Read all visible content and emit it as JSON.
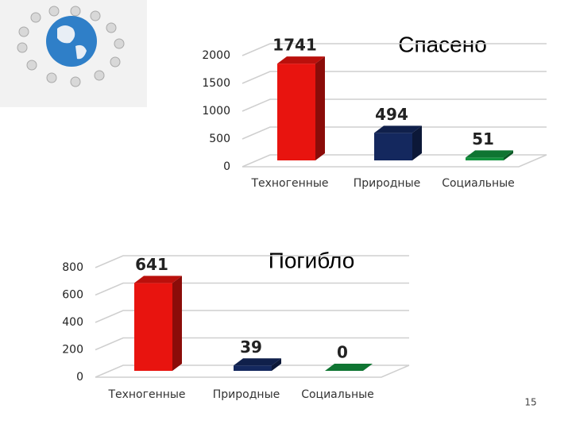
{
  "chart_data": [
    {
      "type": "bar",
      "title": "Спасено",
      "categories": [
        "Техногенные",
        "Природные",
        "Социальные"
      ],
      "values": [
        1741,
        494,
        51
      ],
      "colors": [
        "#e8140f",
        "#14285e",
        "#13923e"
      ],
      "ylim": [
        0,
        2000
      ],
      "yticks": [
        0,
        500,
        1000,
        1500,
        2000
      ],
      "grid": true
    },
    {
      "type": "bar",
      "title": "Погибло",
      "categories": [
        "Техногенные",
        "Природные",
        "Социальные"
      ],
      "values": [
        641,
        39,
        0
      ],
      "colors": [
        "#e8140f",
        "#14285e",
        "#13923e"
      ],
      "ylim": [
        0,
        800
      ],
      "yticks": [
        0,
        200,
        400,
        600,
        800
      ],
      "grid": true
    }
  ],
  "page_number": "15"
}
